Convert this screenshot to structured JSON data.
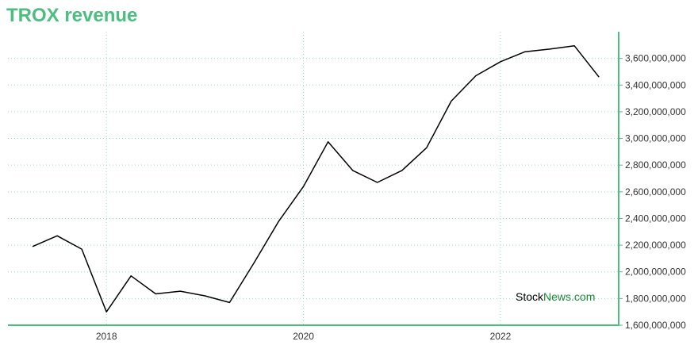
{
  "title": "TROX revenue",
  "watermark": {
    "part1": "Stock",
    "part2": "News.com"
  },
  "colors": {
    "accent": "#4cbf7f",
    "line": "#000000",
    "grid": "#9fdcbf",
    "watermark_green": "#1a8a3a"
  },
  "chart_data": {
    "type": "line",
    "title": "TROX revenue",
    "xlabel": "",
    "ylabel": "",
    "grid": true,
    "x_ticks": [
      2018,
      2020,
      2022
    ],
    "x_tick_labels": [
      "2018",
      "2020",
      "2022"
    ],
    "xlim": [
      2017.0,
      2023.2
    ],
    "ylim": [
      1600000000,
      3800000000
    ],
    "y_ticks": [
      1600000000,
      1800000000,
      2000000000,
      2200000000,
      2400000000,
      2600000000,
      2800000000,
      3000000000,
      3200000000,
      3400000000,
      3600000000
    ],
    "y_tick_labels": [
      "1,600,000,000",
      "1,800,000,000",
      "2,000,000,000",
      "2,200,000,000",
      "2,400,000,000",
      "2,600,000,000",
      "2,800,000,000",
      "3,000,000,000",
      "3,200,000,000",
      "3,400,000,000",
      "3,600,000,000"
    ],
    "series": [
      {
        "x": [
          2017.25,
          2017.5,
          2017.75,
          2018.0,
          2018.25,
          2018.5,
          2018.75,
          2019.0,
          2019.25,
          2019.5,
          2019.75,
          2020.0,
          2020.25,
          2020.5,
          2020.75,
          2021.0,
          2021.25,
          2021.5,
          2021.75,
          2022.0,
          2022.25,
          2022.5,
          2022.75,
          2023.0
        ],
        "values": [
          2190000000,
          2270000000,
          2170000000,
          1700000000,
          1970000000,
          1835000000,
          1855000000,
          1820000000,
          1770000000,
          2070000000,
          2380000000,
          2640000000,
          2975000000,
          2760000000,
          2670000000,
          2760000000,
          2930000000,
          3280000000,
          3470000000,
          3575000000,
          3650000000,
          3670000000,
          3695000000,
          3460000000
        ]
      }
    ]
  }
}
